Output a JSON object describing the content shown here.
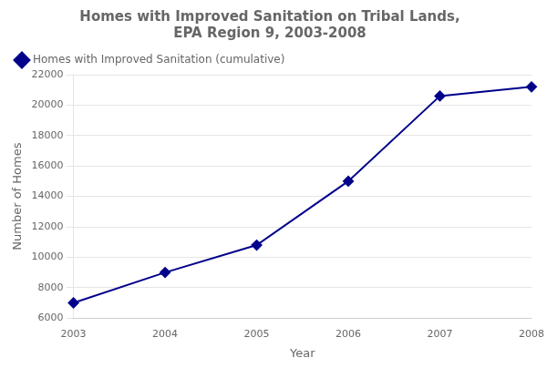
{
  "chart_data": {
    "type": "line",
    "title": [
      "Homes with Improved Sanitation on Tribal Lands,",
      "EPA Region 9, 2003-2008"
    ],
    "x_label": "Year",
    "y_label": "Number of Homes",
    "x": [
      2003,
      2004,
      2005,
      2006,
      2007,
      2008
    ],
    "series": [
      {
        "name": "Homes with Improved Sanitation (cumulative)",
        "color": "#00008B",
        "marker": "diamond",
        "values": [
          7000,
          9000,
          10800,
          15000,
          20600,
          21200
        ]
      }
    ],
    "xlim": [
      2003,
      2008
    ],
    "xticks": [
      2003,
      2004,
      2005,
      2006,
      2007,
      2008
    ],
    "ylim": [
      6000,
      22000
    ],
    "yticks": [
      6000,
      8000,
      10000,
      12000,
      14000,
      16000,
      18000,
      20000,
      22000
    ],
    "grid": "y",
    "legend": "upper left"
  }
}
